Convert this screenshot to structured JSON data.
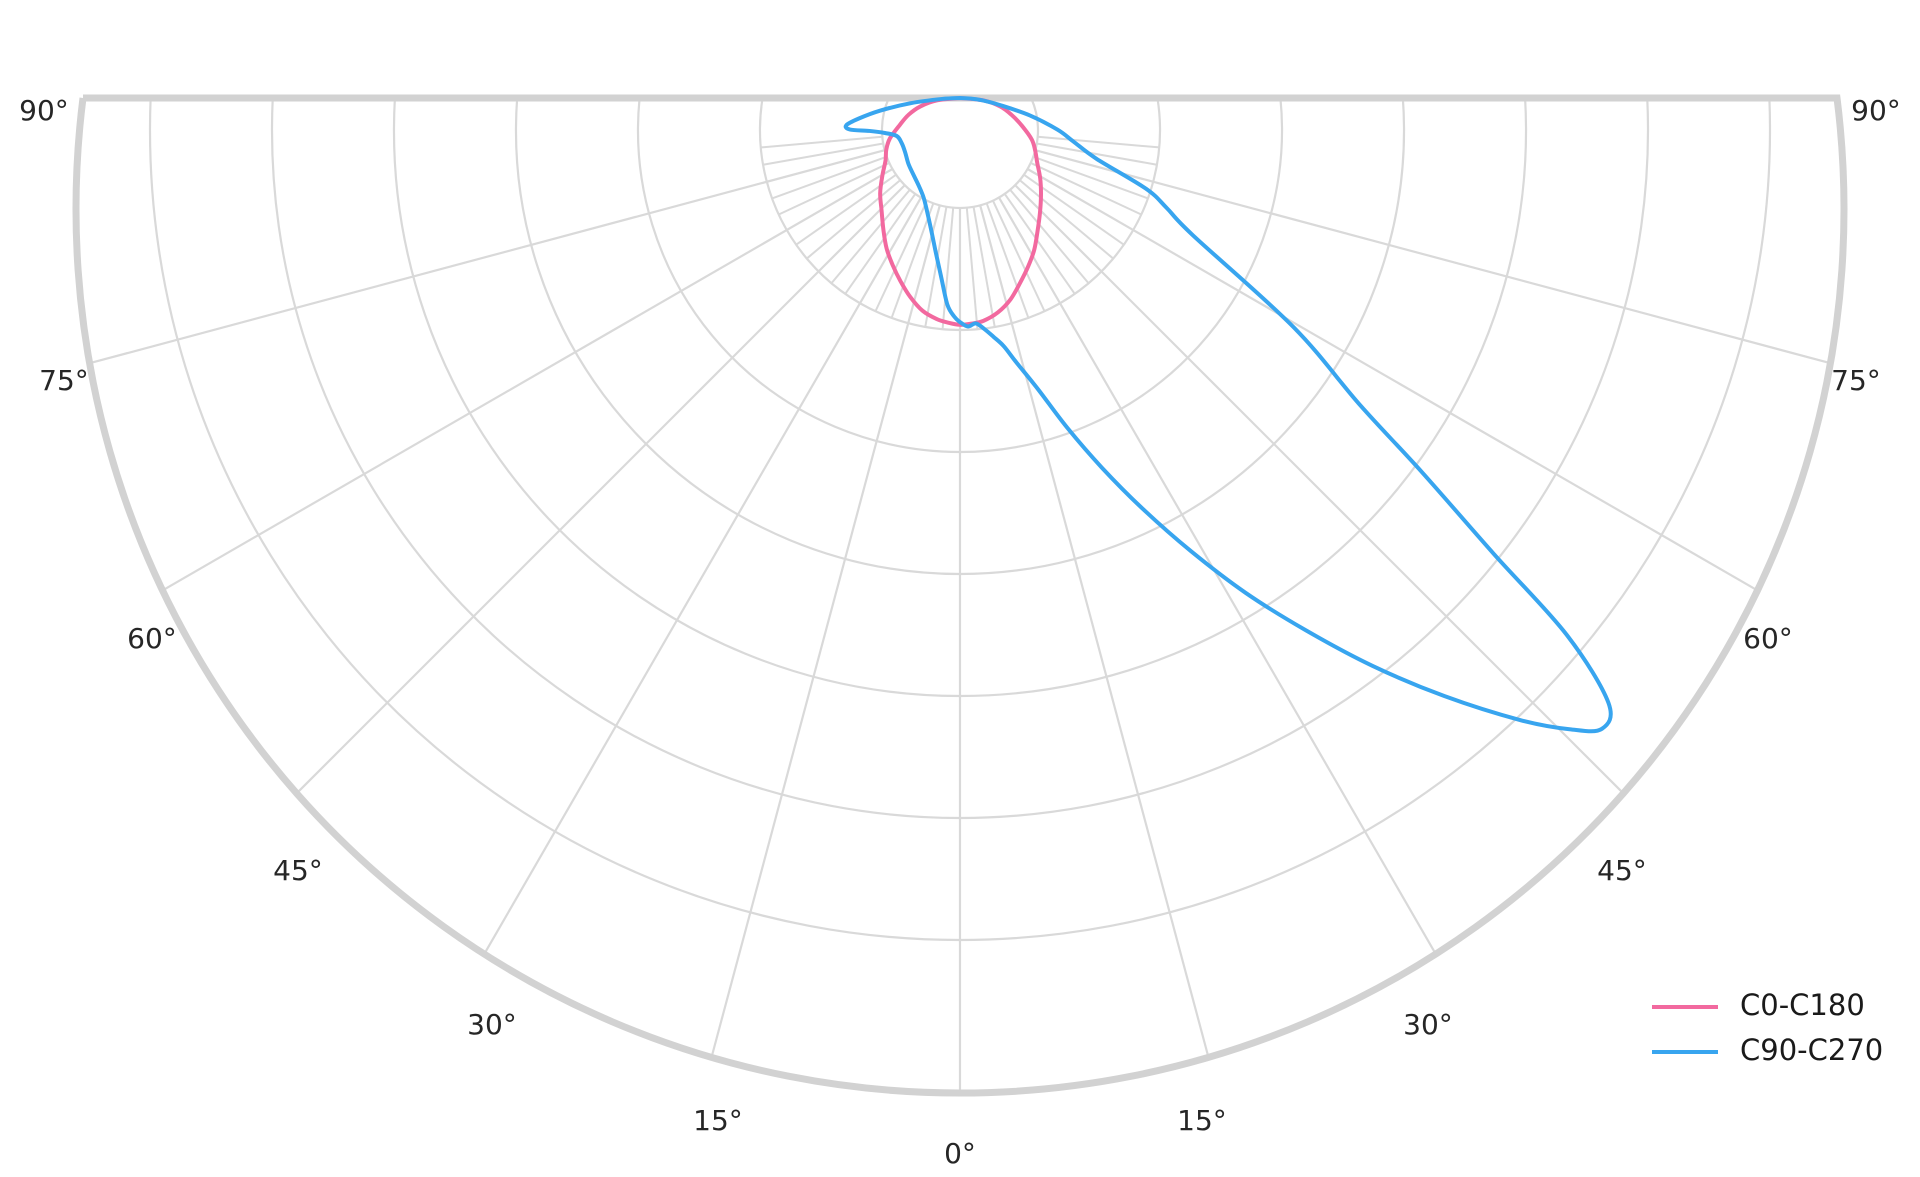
{
  "chart_data": {
    "type": "polar",
    "subtype": "photometric_luminous_intensity_distribution",
    "title": "",
    "orientation": "0° at nadir (bottom center), angles increase to 90° at the horizontal on both left and right sides; flat top edge",
    "angle_labels": [
      "0°",
      "15°",
      "30°",
      "45°",
      "60°",
      "75°",
      "90°"
    ],
    "angle_ticks_deg": [
      0,
      15,
      30,
      45,
      60,
      75,
      90
    ],
    "major_angle_step_deg": 15,
    "minor_angle_step_deg": 5,
    "minor_fan_note": "minor 5° radial lines drawn only in the inner annulus between ring 1 and ring 2",
    "radial_rings_count": 7,
    "radial_axis": {
      "unit": "relative luminous intensity",
      "range": [
        0,
        1
      ],
      "tick_labels_shown": false
    },
    "grid": {
      "line_color": "#d9d9d9",
      "boundary_color": "#d2d2d2",
      "label_color": "#262626"
    },
    "legend": {
      "position": "lower-right",
      "entries": [
        {
          "label": "C0-C180",
          "color": "#f2699f"
        },
        {
          "label": "C90-C270",
          "color": "#38a5ef"
        }
      ]
    },
    "series": [
      {
        "name": "C0-C180",
        "color": "#f2699f",
        "description": "small egg-shaped lobe around nadir, max relative intensity ~0.25 at 0°",
        "points_gamma_deg_value": [
          [
            -90,
            0
          ],
          [
            -84,
            0.026
          ],
          [
            -78,
            0.045
          ],
          [
            -72,
            0.06
          ],
          [
            -66,
            0.073
          ],
          [
            -60,
            0.09
          ],
          [
            -55,
            0.1
          ],
          [
            -50,
            0.108
          ],
          [
            -45,
            0.122
          ],
          [
            -40,
            0.138
          ],
          [
            -35,
            0.152
          ],
          [
            -30,
            0.17
          ],
          [
            -26,
            0.186
          ],
          [
            -22,
            0.2
          ],
          [
            -18,
            0.214
          ],
          [
            -14,
            0.228
          ],
          [
            -10,
            0.24
          ],
          [
            -6,
            0.247
          ],
          [
            -3,
            0.25
          ],
          [
            0,
            0.252
          ],
          [
            3,
            0.251
          ],
          [
            6,
            0.249
          ],
          [
            10,
            0.242
          ],
          [
            14,
            0.231
          ],
          [
            18,
            0.216
          ],
          [
            22,
            0.202
          ],
          [
            26,
            0.188
          ],
          [
            30,
            0.172
          ],
          [
            35,
            0.155
          ],
          [
            40,
            0.14
          ],
          [
            45,
            0.126
          ],
          [
            50,
            0.112
          ],
          [
            55,
            0.102
          ],
          [
            60,
            0.092
          ],
          [
            66,
            0.075
          ],
          [
            72,
            0.06
          ],
          [
            78,
            0.046
          ],
          [
            84,
            0.027
          ],
          [
            90,
            0
          ]
        ]
      },
      {
        "name": "C90-C270",
        "color": "#38a5ef",
        "description": "small hooked lobe on the left near nadir plus a large narrow lobe peaking at ~45° on the right reaching relative intensity 1.0",
        "points_gamma_deg_value": [
          [
            -90,
            0
          ],
          [
            -87,
            0.02
          ],
          [
            -84,
            0.055
          ],
          [
            -81,
            0.09
          ],
          [
            -78.5,
            0.115
          ],
          [
            -76.5,
            0.13
          ],
          [
            -74,
            0.127
          ],
          [
            -70,
            0.107
          ],
          [
            -65,
            0.092
          ],
          [
            -59,
            0.082
          ],
          [
            -52,
            0.082
          ],
          [
            -45,
            0.086
          ],
          [
            -38,
            0.093
          ],
          [
            -31,
            0.1
          ],
          [
            -25,
            0.108
          ],
          [
            -20,
            0.118
          ],
          [
            -16,
            0.132
          ],
          [
            -12,
            0.152
          ],
          [
            -9,
            0.173
          ],
          [
            -6,
            0.2
          ],
          [
            -3.5,
            0.23
          ],
          [
            -1.5,
            0.243
          ],
          [
            0,
            0.249
          ],
          [
            2,
            0.254
          ],
          [
            4,
            0.251
          ],
          [
            6,
            0.258
          ],
          [
            8,
            0.268
          ],
          [
            10,
            0.28
          ],
          [
            12,
            0.3
          ],
          [
            15,
            0.335
          ],
          [
            18,
            0.385
          ],
          [
            21,
            0.44
          ],
          [
            24,
            0.5
          ],
          [
            27,
            0.565
          ],
          [
            30,
            0.635
          ],
          [
            33,
            0.705
          ],
          [
            36,
            0.78
          ],
          [
            39,
            0.855
          ],
          [
            42,
            0.93
          ],
          [
            44,
            0.975
          ],
          [
            45.5,
            1.0
          ],
          [
            47,
            0.985
          ],
          [
            48.5,
            0.9
          ],
          [
            49.5,
            0.78
          ],
          [
            51,
            0.66
          ],
          [
            52.5,
            0.56
          ],
          [
            55.5,
            0.45
          ],
          [
            59.5,
            0.3
          ],
          [
            62,
            0.26
          ],
          [
            64,
            0.23
          ],
          [
            66,
            0.166
          ],
          [
            69,
            0.135
          ],
          [
            72,
            0.114
          ],
          [
            76,
            0.08
          ],
          [
            80,
            0.045
          ],
          [
            84,
            0.025
          ],
          [
            87,
            0.012
          ],
          [
            90,
            0
          ]
        ]
      }
    ]
  }
}
